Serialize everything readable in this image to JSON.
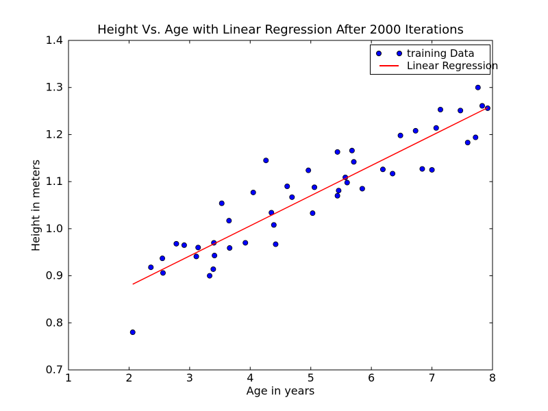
{
  "colors": {
    "background": "#ffffff",
    "dot_fill": "#0000ff",
    "dot_edge": "#000000",
    "regression_line": "#ff0000",
    "axis": "#000000",
    "text": "#000000"
  },
  "chart_data": {
    "type": "scatter",
    "title": "Height Vs. Age with Linear Regression After 2000 Iterations",
    "xlabel": "Age in years",
    "ylabel": "Height in meters",
    "xlim": [
      1,
      8
    ],
    "ylim": [
      0.7,
      1.4
    ],
    "x_ticks": [
      1,
      2,
      3,
      4,
      5,
      6,
      7,
      8
    ],
    "y_ticks": [
      0.7,
      0.8,
      0.9,
      1.0,
      1.1,
      1.2,
      1.3,
      1.4
    ],
    "grid": false,
    "tick_direction": "in",
    "legend": {
      "position": "upper right",
      "entries": [
        {
          "label": "training Data",
          "marker": "circle",
          "color": "#0000ff"
        },
        {
          "label": "Linear Regression",
          "marker": "line",
          "color": "#ff0000"
        }
      ]
    },
    "series": [
      {
        "name": "training Data",
        "type": "scatter",
        "color": "#0000ff",
        "points": [
          [
            2.06,
            0.78
          ],
          [
            2.36,
            0.918
          ],
          [
            2.55,
            0.937
          ],
          [
            2.56,
            0.906
          ],
          [
            2.78,
            0.968
          ],
          [
            2.91,
            0.965
          ],
          [
            3.11,
            0.941
          ],
          [
            3.14,
            0.96
          ],
          [
            3.33,
            0.9
          ],
          [
            3.39,
            0.914
          ],
          [
            3.4,
            0.97
          ],
          [
            3.41,
            0.943
          ],
          [
            3.53,
            1.054
          ],
          [
            3.65,
            1.017
          ],
          [
            3.66,
            0.959
          ],
          [
            3.92,
            0.97
          ],
          [
            4.05,
            1.077
          ],
          [
            4.26,
            1.145
          ],
          [
            4.35,
            1.034
          ],
          [
            4.39,
            1.008
          ],
          [
            4.42,
            0.967
          ],
          [
            4.61,
            1.09
          ],
          [
            4.69,
            1.067
          ],
          [
            4.96,
            1.124
          ],
          [
            5.03,
            1.033
          ],
          [
            5.06,
            1.088
          ],
          [
            5.44,
            1.163
          ],
          [
            5.44,
            1.07
          ],
          [
            5.46,
            1.081
          ],
          [
            5.57,
            1.109
          ],
          [
            5.6,
            1.098
          ],
          [
            5.68,
            1.166
          ],
          [
            5.71,
            1.142
          ],
          [
            5.85,
            1.085
          ],
          [
            6.19,
            1.126
          ],
          [
            6.35,
            1.117
          ],
          [
            6.48,
            1.198
          ],
          [
            6.73,
            1.208
          ],
          [
            6.84,
            1.127
          ],
          [
            7.0,
            1.125
          ],
          [
            7.07,
            1.214
          ],
          [
            7.14,
            1.253
          ],
          [
            7.47,
            1.251
          ],
          [
            7.59,
            1.183
          ],
          [
            7.72,
            1.194
          ],
          [
            7.76,
            1.3
          ],
          [
            7.83,
            1.261
          ],
          [
            7.92,
            1.256
          ]
        ]
      },
      {
        "name": "Linear Regression",
        "type": "line",
        "color": "#ff0000",
        "points": [
          [
            2.06,
            0.882
          ],
          [
            7.92,
            1.257
          ]
        ]
      }
    ]
  }
}
